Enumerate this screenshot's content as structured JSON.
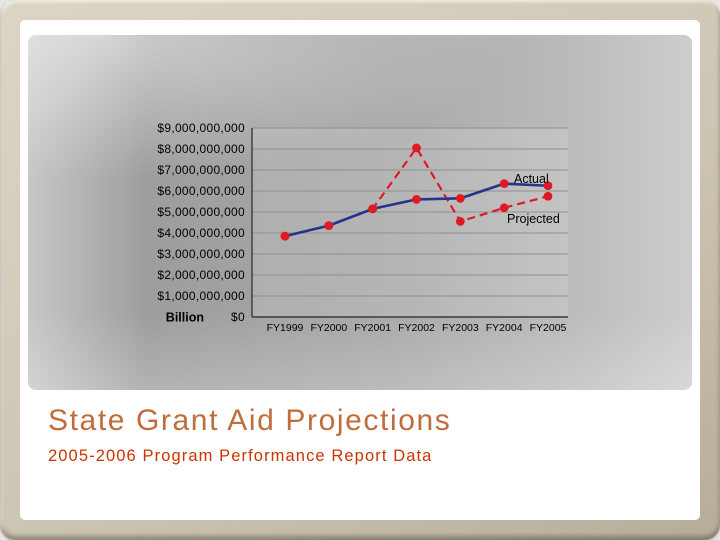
{
  "slide": {
    "title": "State Grant Aid Projections",
    "subtitle": "2005-2006 Program Performance Report Data",
    "title_color": "#C06C3B",
    "subtitle_color": "#CC3300"
  },
  "chart_data": {
    "type": "line",
    "x": [
      "FY1999",
      "FY2000",
      "FY2001",
      "FY2002",
      "FY2003",
      "FY2004",
      "FY2005"
    ],
    "series": [
      {
        "name": "Actual",
        "style": "solid",
        "color": "#27348B",
        "values": [
          3850000000,
          4350000000,
          5150000000,
          5600000000,
          5650000000,
          6350000000,
          6250000000
        ]
      },
      {
        "name": "Projected",
        "style": "dashed",
        "color": "#E01A23",
        "values": [
          3850000000,
          4350000000,
          5150000000,
          8050000000,
          4550000000,
          5200000000,
          5750000000
        ]
      }
    ],
    "marker_color": "#E01A23",
    "ylim": [
      0,
      9000000000
    ],
    "ytick_step": 1000000000,
    "ytick_labels": [
      "$0",
      "$1,000,000,000",
      "$2,000,000,000",
      "$3,000,000,000",
      "$4,000,000,000",
      "$5,000,000,000",
      "$6,000,000,000",
      "$7,000,000,000",
      "$8,000,000,000",
      "$9,000,000,000"
    ],
    "unit_label": "Billion",
    "annotations": [
      {
        "text": "Actual",
        "series": "Actual"
      },
      {
        "text": "Projected",
        "series": "Projected"
      }
    ],
    "grid": "horizontal",
    "legend_position": "inline-annotations"
  }
}
